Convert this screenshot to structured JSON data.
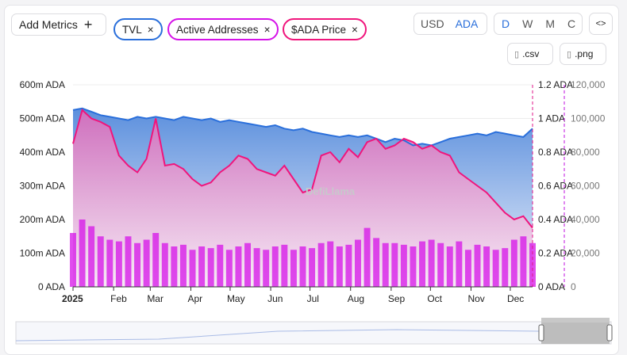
{
  "toolbar": {
    "add_metrics": "Add Metrics",
    "add_icon": "+",
    "metrics": [
      {
        "label": "TVL",
        "color": "#2a6fdb"
      },
      {
        "label": "Active Addresses",
        "color": "#d512e8"
      },
      {
        "label": "$ADA Price",
        "color": "#f0157c"
      }
    ],
    "close_icon": "×",
    "currency": [
      "USD",
      "ADA"
    ],
    "currency_selected": "ADA",
    "periods": [
      "D",
      "W",
      "M",
      "C"
    ],
    "period_selected": "D",
    "embed_icon": "<>",
    "csv": ".csv",
    "png": ".png"
  },
  "watermark": "DefiLlama",
  "chart_data": {
    "type": "line",
    "x_ticks": [
      "2025",
      "Feb",
      "Mar",
      "Apr",
      "May",
      "Jun",
      "Jul",
      "Aug",
      "Sep",
      "Oct",
      "Nov",
      "Dec"
    ],
    "left_axis": {
      "ticks": [
        "0 ADA",
        "100m ADA",
        "200m ADA",
        "300m ADA",
        "400m ADA",
        "500m ADA",
        "600m ADA"
      ],
      "range": [
        0,
        600
      ]
    },
    "price_axis": {
      "ticks": [
        "0 ADA",
        "0.2 ADA",
        "0.4 ADA",
        "0.6 ADA",
        "0.8 ADA",
        "1 ADA",
        "1.2 ADA"
      ],
      "range": [
        0,
        1.2
      ]
    },
    "addresses_axis": {
      "ticks": [
        "0",
        "20,000",
        "40,000",
        "60,000",
        "80,000",
        "100,000",
        "120,000"
      ],
      "range": [
        0,
        120000
      ]
    },
    "series": [
      {
        "name": "TVL",
        "unit": "m ADA",
        "color": "#2a6fdb",
        "values": [
          525,
          530,
          520,
          510,
          505,
          500,
          495,
          505,
          500,
          505,
          500,
          495,
          505,
          500,
          495,
          500,
          490,
          495,
          490,
          485,
          480,
          475,
          480,
          470,
          465,
          470,
          460,
          455,
          450,
          445,
          450,
          445,
          450,
          440,
          430,
          440,
          435,
          420,
          425,
          420,
          430,
          440,
          445,
          450,
          455,
          450,
          460,
          455,
          450,
          445,
          470
        ]
      },
      {
        "name": "$ADA Price",
        "unit": "ADA",
        "color": "#f0157c",
        "values": [
          0.85,
          1.05,
          1.0,
          0.98,
          0.95,
          0.78,
          0.72,
          0.68,
          0.76,
          1.0,
          0.72,
          0.73,
          0.7,
          0.64,
          0.6,
          0.62,
          0.68,
          0.72,
          0.78,
          0.76,
          0.7,
          0.68,
          0.66,
          0.72,
          0.64,
          0.56,
          0.58,
          0.78,
          0.8,
          0.74,
          0.82,
          0.77,
          0.86,
          0.88,
          0.82,
          0.84,
          0.88,
          0.86,
          0.82,
          0.84,
          0.8,
          0.78,
          0.68,
          0.64,
          0.6,
          0.56,
          0.5,
          0.44,
          0.4,
          0.42,
          0.35
        ]
      },
      {
        "name": "Active Addresses",
        "color": "#d512e8",
        "values": [
          32000,
          40000,
          36000,
          30000,
          28000,
          27000,
          30000,
          26000,
          28000,
          32000,
          26000,
          24000,
          25000,
          22000,
          24000,
          23000,
          25000,
          22000,
          24000,
          26000,
          23000,
          22000,
          24000,
          25000,
          22000,
          24000,
          23000,
          26000,
          27000,
          24000,
          25000,
          28000,
          35000,
          29000,
          26000,
          26000,
          25000,
          24000,
          27000,
          28000,
          26000,
          24000,
          27000,
          22000,
          25000,
          24000,
          22000,
          23000,
          28000,
          30000,
          26000
        ]
      }
    ]
  }
}
